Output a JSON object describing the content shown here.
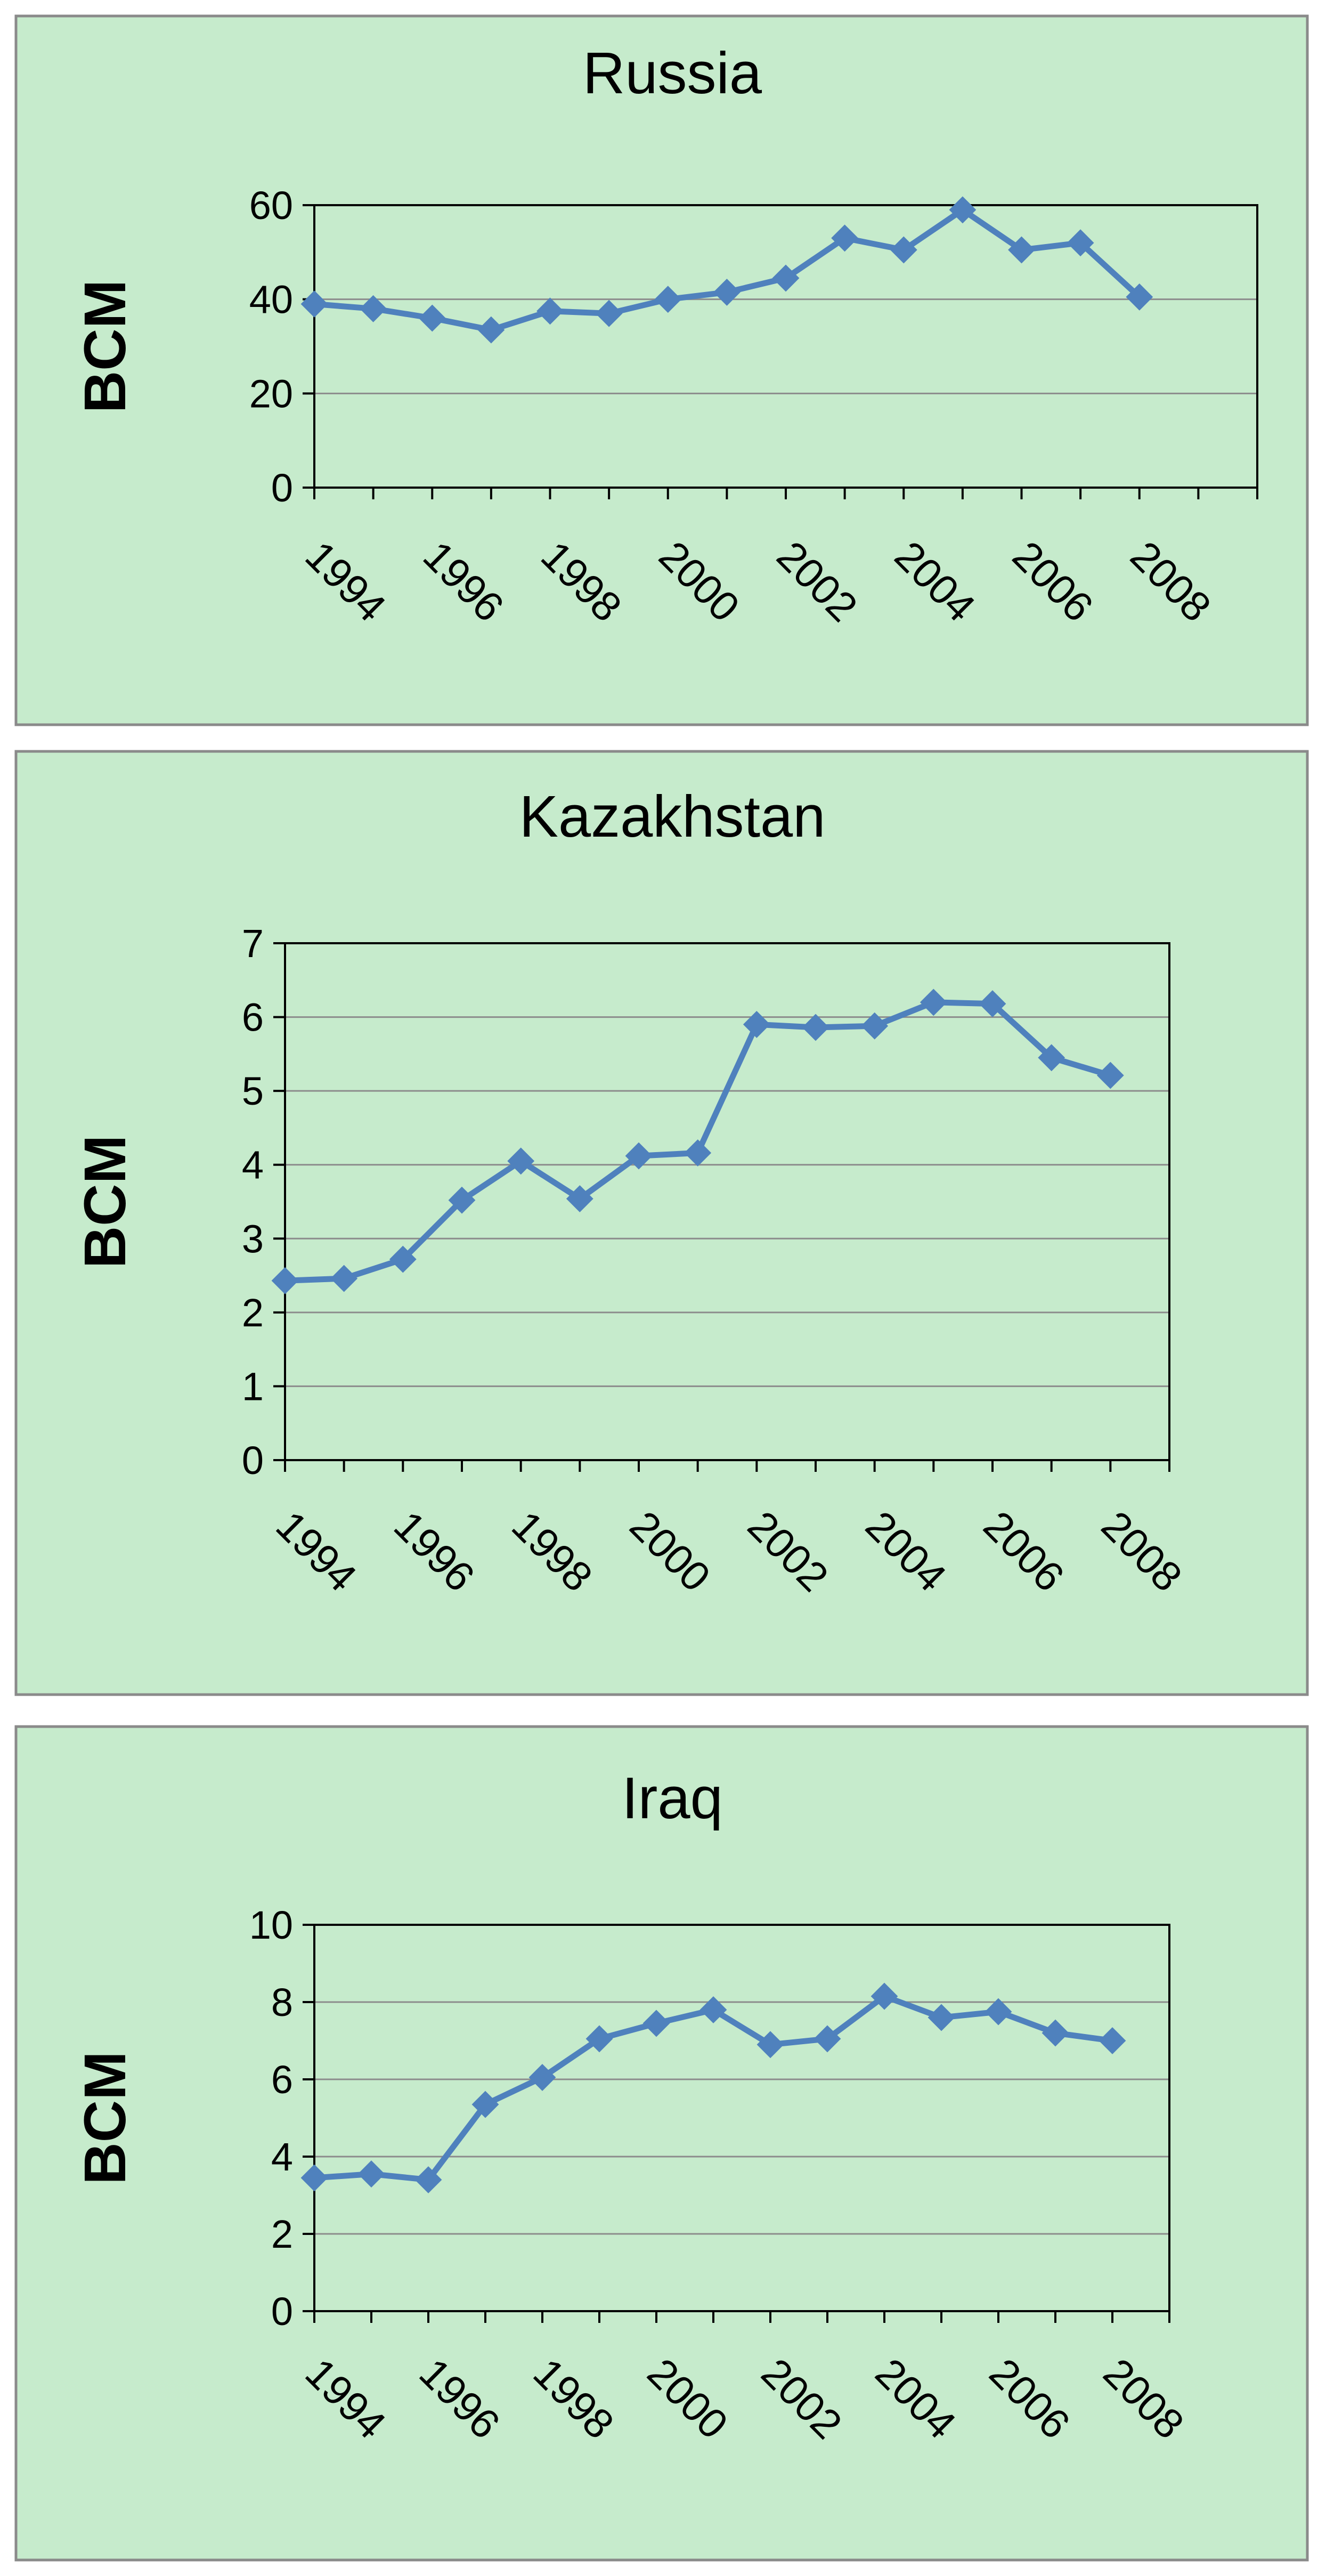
{
  "chart_data": [
    {
      "type": "line",
      "title": "Russia",
      "xlabel": "",
      "ylabel": "BCM",
      "x": [
        1994,
        1995,
        1996,
        1997,
        1998,
        1999,
        2000,
        2001,
        2002,
        2003,
        2004,
        2005,
        2006,
        2007,
        2008
      ],
      "x_tick_labels": [
        "1994",
        "1996",
        "1998",
        "2000",
        "2002",
        "2004",
        "2006",
        "2008"
      ],
      "y_tick_labels": [
        "0",
        "20",
        "40",
        "60"
      ],
      "ylim": [
        0,
        60
      ],
      "xlim": [
        1994,
        2010
      ],
      "grid": true,
      "legend": "none",
      "series": [
        {
          "values": [
            39,
            38,
            36,
            33.5,
            37.5,
            37,
            40,
            41.5,
            44.5,
            53,
            50.5,
            59,
            50.5,
            52,
            40.5
          ]
        }
      ],
      "colors": {
        "background": "#c6ebcc",
        "line": "#4f81bd",
        "plot_border": "#000000",
        "grid": "#8c8c8c"
      }
    },
    {
      "type": "line",
      "title": "Kazakhstan",
      "xlabel": "",
      "ylabel": "BCM",
      "x": [
        1994,
        1995,
        1996,
        1997,
        1998,
        1999,
        2000,
        2001,
        2002,
        2003,
        2004,
        2005,
        2006,
        2007,
        2008
      ],
      "x_tick_labels": [
        "1994",
        "1996",
        "1998",
        "2000",
        "2002",
        "2004",
        "2006",
        "2008"
      ],
      "y_tick_labels": [
        "0",
        "1",
        "2",
        "3",
        "4",
        "5",
        "6",
        "7"
      ],
      "ylim": [
        0,
        7
      ],
      "xlim": [
        1994,
        2009
      ],
      "grid": true,
      "legend": "none",
      "series": [
        {
          "values": [
            2.43,
            2.46,
            2.72,
            3.52,
            4.05,
            3.54,
            4.12,
            4.16,
            5.9,
            5.86,
            5.88,
            6.2,
            6.18,
            5.45,
            5.21
          ]
        }
      ],
      "colors": {
        "background": "#c6ebcc",
        "line": "#4f81bd",
        "plot_border": "#000000",
        "grid": "#8c8c8c"
      }
    },
    {
      "type": "line",
      "title": "Iraq",
      "xlabel": "",
      "ylabel": "BCM",
      "x": [
        1994,
        1995,
        1996,
        1997,
        1998,
        1999,
        2000,
        2001,
        2002,
        2003,
        2004,
        2005,
        2006,
        2007,
        2008
      ],
      "x_tick_labels": [
        "1994",
        "1996",
        "1998",
        "2000",
        "2002",
        "2004",
        "2006",
        "2008"
      ],
      "y_tick_labels": [
        "0",
        "2",
        "4",
        "6",
        "8",
        "10"
      ],
      "ylim": [
        0,
        10
      ],
      "xlim": [
        1994,
        2009
      ],
      "grid": true,
      "legend": "none",
      "series": [
        {
          "values": [
            3.45,
            3.55,
            3.4,
            5.35,
            6.05,
            7.05,
            7.45,
            7.8,
            6.9,
            7.05,
            8.15,
            7.6,
            7.75,
            7.2,
            7.0
          ]
        }
      ],
      "colors": {
        "background": "#c6ebcc",
        "line": "#4f81bd",
        "plot_border": "#000000",
        "grid": "#8c8c8c"
      }
    }
  ]
}
